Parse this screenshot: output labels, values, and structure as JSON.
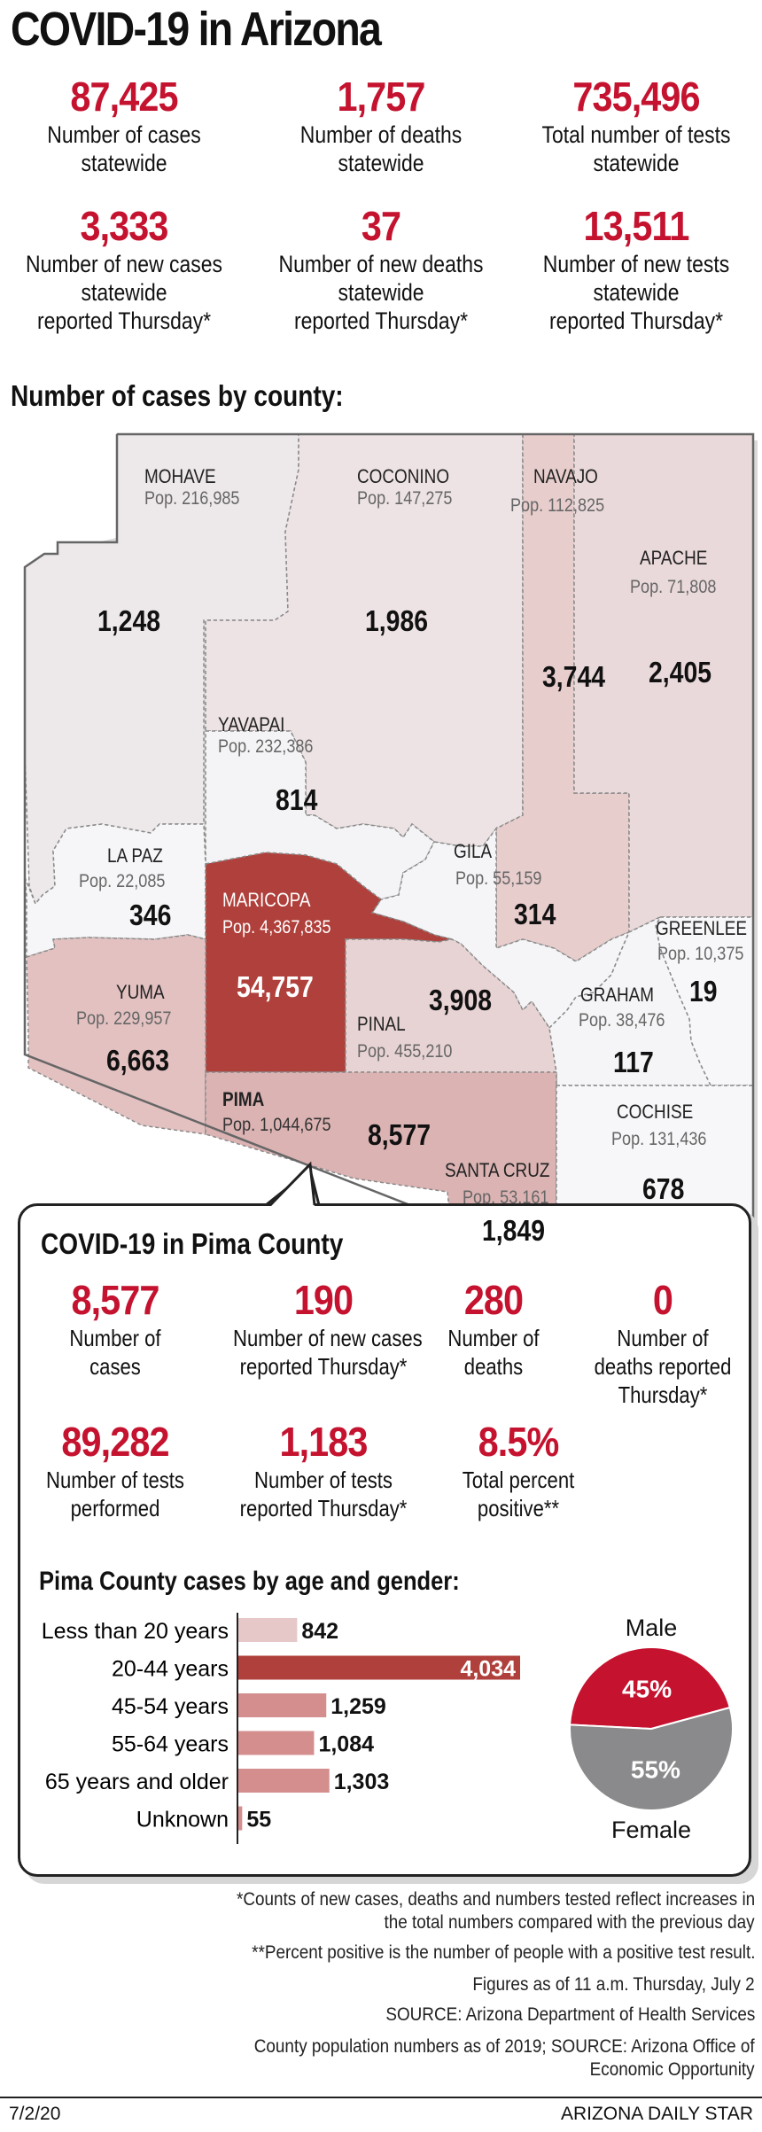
{
  "title": "COVID-19 in Arizona",
  "state_stats": [
    {
      "value": "87,425",
      "label1": "Number of cases",
      "label2": "statewide",
      "label3": ""
    },
    {
      "value": "1,757",
      "label1": "Number of deaths",
      "label2": "statewide",
      "label3": ""
    },
    {
      "value": "735,496",
      "label1": "Total number of tests",
      "label2": "statewide",
      "label3": ""
    },
    {
      "value": "3,333",
      "label1": "Number of new cases",
      "label2": "statewide",
      "label3": "reported Thursday*"
    },
    {
      "value": "37",
      "label1": "Number of new deaths",
      "label2": "statewide",
      "label3": "reported Thursday*"
    },
    {
      "value": "13,511",
      "label1": "Number of new tests",
      "label2": "statewide",
      "label3": "reported Thursday*"
    }
  ],
  "map_heading": "Number of cases by county:",
  "counties": [
    {
      "name": "MOHAVE",
      "pop": "Pop. 216,985",
      "cases": "1,248",
      "color": "#ede8ea"
    },
    {
      "name": "COCONINO",
      "pop": "Pop. 147,275",
      "cases": "1,986",
      "color": "#ede3e4"
    },
    {
      "name": "NAVAJO",
      "pop": "Pop. 112,825",
      "cases": "3,744",
      "color": "#e8cdcd"
    },
    {
      "name": "APACHE",
      "pop": "Pop. 71,808",
      "cases": "2,405",
      "color": "#ead9da"
    },
    {
      "name": "YAVAPAI",
      "pop": "Pop. 232,386",
      "cases": "814",
      "color": "#f4f3f5"
    },
    {
      "name": "LA PAZ",
      "pop": "Pop. 22,085",
      "cases": "346",
      "color": "#f6f6f8"
    },
    {
      "name": "GILA",
      "pop": "Pop. 55,159",
      "cases": "314",
      "color": "#f5f5f7"
    },
    {
      "name": "MARICOPA",
      "pop": "Pop. 4,367,835",
      "cases": "54,757",
      "color": "#b0403b"
    },
    {
      "name": "GREENLEE",
      "pop": "Pop. 10,375",
      "cases": "19",
      "color": "#f7f7f9"
    },
    {
      "name": "YUMA",
      "pop": "Pop. 229,957",
      "cases": "6,663",
      "color": "#e3c1c1"
    },
    {
      "name": "PINAL",
      "pop": "Pop. 455,210",
      "cases": "3,908",
      "color": "#e8d3d4"
    },
    {
      "name": "GRAHAM",
      "pop": "Pop. 38,476",
      "cases": "117",
      "color": "#f5f5f7"
    },
    {
      "name": "PIMA",
      "pop": "Pop. 1,044,675",
      "cases": "8,577",
      "color": "#dbb3b3"
    },
    {
      "name": "SANTA CRUZ",
      "pop": "Pop. 53,161",
      "cases": "1,849",
      "color": "#e8d6d7"
    },
    {
      "name": "COCHISE",
      "pop": "Pop. 131,436",
      "cases": "678",
      "color": "#f7f7f9"
    }
  ],
  "pima": {
    "heading": "COVID-19 in Pima County",
    "stats": [
      {
        "value": "8,577",
        "label1": "Number of",
        "label2": "cases",
        "label3": ""
      },
      {
        "value": "190",
        "label1": "Number of new cases",
        "label2": "reported Thursday*",
        "label3": ""
      },
      {
        "value": "280",
        "label1": "Number of",
        "label2": "deaths",
        "label3": ""
      },
      {
        "value": "0",
        "label1": "Number of",
        "label2": "deaths reported",
        "label3": "Thursday*"
      },
      {
        "value": "89,282",
        "label1": "Number of tests",
        "label2": "performed",
        "label3": ""
      },
      {
        "value": "1,183",
        "label1": "Number of tests",
        "label2": "reported Thursday*",
        "label3": ""
      },
      {
        "value": "8.5%",
        "label1": "Total percent",
        "label2": "positive**",
        "label3": ""
      }
    ],
    "age_heading": "Pima County cases by age and gender:"
  },
  "chart_data": [
    {
      "type": "bar",
      "orientation": "horizontal",
      "categories": [
        "Less than 20 years",
        "20-44 years",
        "45-54 years",
        "55-64 years",
        "65 years and older",
        "Unknown"
      ],
      "values": [
        842,
        4034,
        1259,
        1084,
        1303,
        55
      ],
      "value_labels": [
        "842",
        "4,034",
        "1,259",
        "1,084",
        "1,303",
        "55"
      ],
      "colors": [
        "#e6c8c8",
        "#b0403b",
        "#d48e8e",
        "#d48e8e",
        "#d48e8e",
        "#d48e8e"
      ]
    },
    {
      "type": "pie",
      "categories": [
        "Male",
        "Female"
      ],
      "values": [
        45,
        55
      ],
      "value_labels": [
        "45%",
        "55%"
      ],
      "colors": [
        "#c4122f",
        "#8a8a8c"
      ]
    }
  ],
  "footnotes": [
    "*Counts of new cases, deaths and numbers tested reflect increases in",
    "the total numbers compared with the previous day",
    "**Percent positive is the number of people with a positive test result.",
    "Figures as of 11 a.m. Thursday, July 2",
    "SOURCE: Arizona Department of Health Services",
    "County population numbers as of 2019; SOURCE: Arizona Office of",
    "Economic Opportunity"
  ],
  "date": "7/2/20",
  "publisher": "ARIZONA DAILY STAR"
}
